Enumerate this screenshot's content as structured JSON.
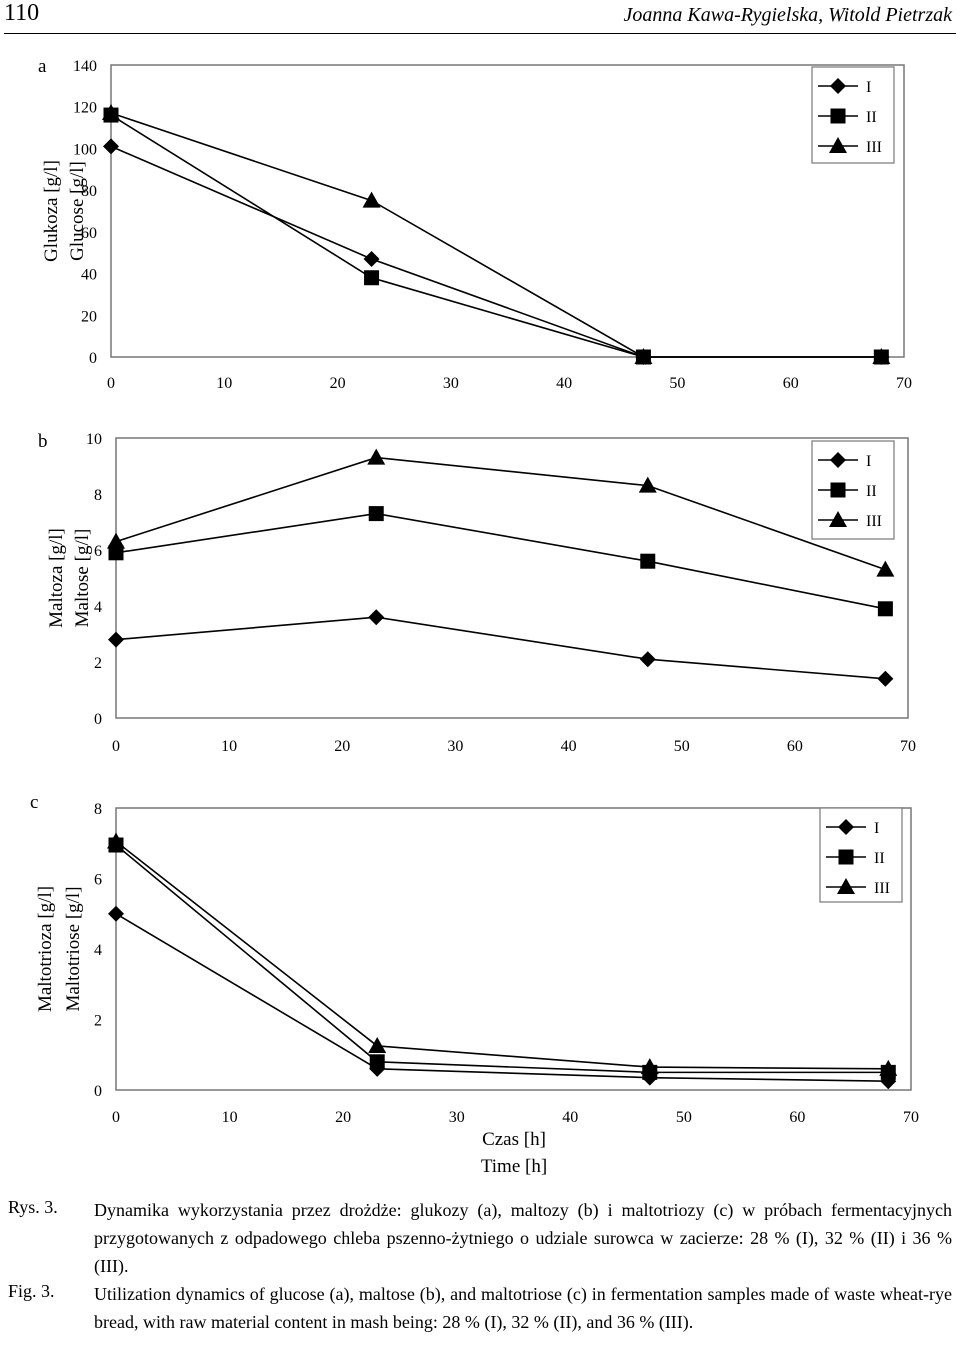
{
  "header": {
    "page_number": "110",
    "authors": "Joanna Kawa-Rygielska, Witold Pietrzak"
  },
  "chart_data": [
    {
      "type": "line",
      "panel_label": "a",
      "ylabel_pl": "Glukoza [g/l]",
      "ylabel_en": "Glucose [g/l]",
      "xlabel_pl": "",
      "xlabel_en": "",
      "xlim": [
        0,
        70
      ],
      "ylim": [
        0,
        140
      ],
      "x_ticks": [
        0,
        10,
        20,
        30,
        40,
        50,
        60,
        70
      ],
      "y_ticks": [
        0,
        20,
        40,
        60,
        80,
        100,
        120,
        140
      ],
      "grid": false,
      "legend": "top-right",
      "series": [
        {
          "name": "I",
          "marker": "diamond",
          "x": [
            0,
            23,
            47,
            68
          ],
          "values": [
            101,
            47,
            0,
            0
          ]
        },
        {
          "name": "II",
          "marker": "square",
          "x": [
            0,
            23,
            47,
            68
          ],
          "values": [
            116,
            38,
            0,
            0
          ]
        },
        {
          "name": "III",
          "marker": "triangle",
          "x": [
            0,
            23,
            47,
            68
          ],
          "values": [
            117,
            75,
            0,
            0
          ]
        }
      ]
    },
    {
      "type": "line",
      "panel_label": "b",
      "ylabel_pl": "Maltoza [g/l]",
      "ylabel_en": "Maltose [g/l]",
      "xlabel_pl": "",
      "xlabel_en": "",
      "xlim": [
        0,
        70
      ],
      "ylim": [
        0,
        10
      ],
      "x_ticks": [
        0,
        10,
        20,
        30,
        40,
        50,
        60,
        70
      ],
      "y_ticks": [
        0,
        2,
        4,
        6,
        8,
        10
      ],
      "grid": false,
      "legend": "top-right",
      "series": [
        {
          "name": "I",
          "marker": "diamond",
          "x": [
            0,
            23,
            47,
            68
          ],
          "values": [
            2.8,
            3.6,
            2.1,
            1.4
          ]
        },
        {
          "name": "II",
          "marker": "square",
          "x": [
            0,
            23,
            47,
            68
          ],
          "values": [
            5.9,
            7.3,
            5.6,
            3.9
          ]
        },
        {
          "name": "III",
          "marker": "triangle",
          "x": [
            0,
            23,
            47,
            68
          ],
          "values": [
            6.3,
            9.3,
            8.3,
            5.3
          ]
        }
      ]
    },
    {
      "type": "line",
      "panel_label": "c",
      "ylabel_pl": "Maltotrioza [g/l]",
      "ylabel_en": "Maltotriose [g/l]",
      "xlabel_pl": "Czas [h]",
      "xlabel_en": "Time [h]",
      "xlim": [
        0,
        70
      ],
      "ylim": [
        0,
        8
      ],
      "x_ticks": [
        0,
        10,
        20,
        30,
        40,
        50,
        60,
        70
      ],
      "y_ticks": [
        0,
        2,
        4,
        6,
        8
      ],
      "grid": false,
      "legend": "top-right",
      "series": [
        {
          "name": "I",
          "marker": "diamond",
          "x": [
            0,
            23,
            47,
            68
          ],
          "values": [
            5.0,
            0.6,
            0.35,
            0.25
          ]
        },
        {
          "name": "II",
          "marker": "square",
          "x": [
            0,
            23,
            47,
            68
          ],
          "values": [
            6.95,
            0.8,
            0.5,
            0.5
          ]
        },
        {
          "name": "III",
          "marker": "triangle",
          "x": [
            0,
            23,
            47,
            68
          ],
          "values": [
            7.05,
            1.25,
            0.65,
            0.6
          ]
        }
      ]
    }
  ],
  "caption": {
    "pl_label": "Rys. 3.",
    "pl_text": "Dynamika wykorzystania przez drożdże: glukozy (a), maltozy (b) i maltotriozy (c) w próbach fermentacyjnych przygotowanych z odpadowego chleba pszenno-żytniego o udziale surowca w zacierze: 28 % (I), 32 % (II) i 36 % (III).",
    "en_label": "Fig. 3.",
    "en_text": "Utilization dynamics of glucose (a), maltose (b), and maltotriose (c) in fermentation samples made of waste wheat-rye bread, with raw material content in mash being:  28 % (I), 32 % (II), and 36 % (III)."
  }
}
